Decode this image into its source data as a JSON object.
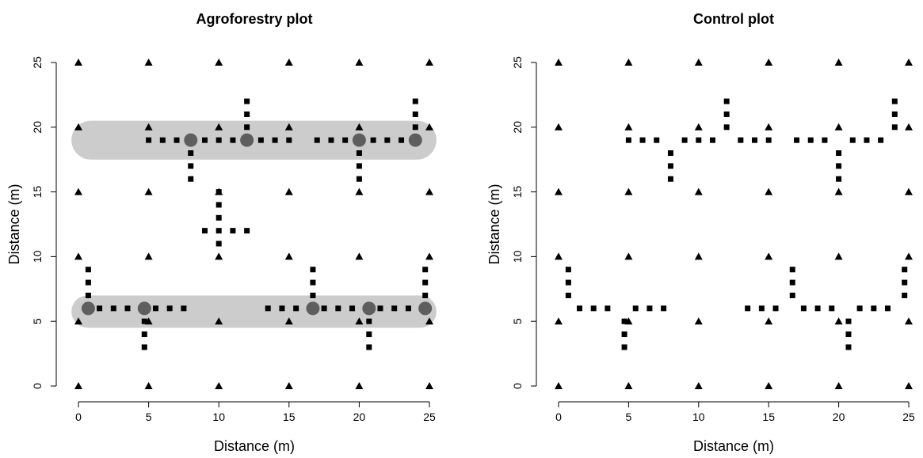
{
  "chart_data": [
    {
      "type": "scatter",
      "title": "Agroforestry plot",
      "xlabel": "Distance (m)",
      "ylabel": "Distance (m)",
      "xlim": [
        0,
        25
      ],
      "ylim": [
        0,
        25
      ],
      "xticks": [
        "0",
        "5",
        "10",
        "15",
        "20",
        "25"
      ],
      "yticks": [
        "0",
        "5",
        "10",
        "15",
        "20",
        "25"
      ],
      "grid": false,
      "bands": [
        {
          "x": [
            -0.5,
            25.5
          ],
          "y": [
            17.5,
            20.5
          ],
          "color": "#cccccc"
        },
        {
          "x": [
            -0.5,
            25.5
          ],
          "y": [
            4.5,
            7.0
          ],
          "color": "#cccccc"
        }
      ],
      "series": [
        {
          "marker": "triangle",
          "color": "#000000",
          "points": [
            [
              0,
              0
            ],
            [
              5,
              0
            ],
            [
              10,
              0
            ],
            [
              15,
              0
            ],
            [
              20,
              0
            ],
            [
              25,
              0
            ],
            [
              0,
              5
            ],
            [
              5,
              5
            ],
            [
              10,
              5
            ],
            [
              15,
              5
            ],
            [
              20,
              5
            ],
            [
              25,
              5
            ],
            [
              0,
              10
            ],
            [
              5,
              10
            ],
            [
              10,
              10
            ],
            [
              15,
              10
            ],
            [
              20,
              10
            ],
            [
              25,
              10
            ],
            [
              0,
              15
            ],
            [
              5,
              15
            ],
            [
              10,
              15
            ],
            [
              15,
              15
            ],
            [
              20,
              15
            ],
            [
              25,
              15
            ],
            [
              0,
              20
            ],
            [
              5,
              20
            ],
            [
              10,
              20
            ],
            [
              15,
              20
            ],
            [
              20,
              20
            ],
            [
              25,
              20
            ],
            [
              0,
              25
            ],
            [
              5,
              25
            ],
            [
              10,
              25
            ],
            [
              15,
              25
            ],
            [
              20,
              25
            ],
            [
              25,
              25
            ]
          ]
        },
        {
          "marker": "square",
          "color": "#000000",
          "points": [
            [
              5.0,
              19
            ],
            [
              6.0,
              19
            ],
            [
              7.0,
              19
            ],
            [
              9.0,
              19
            ],
            [
              10.0,
              19
            ],
            [
              11.0,
              19
            ],
            [
              13.0,
              19
            ],
            [
              14.0,
              19
            ],
            [
              15.0,
              19
            ],
            [
              17.0,
              19
            ],
            [
              18.0,
              19
            ],
            [
              19.0,
              19
            ],
            [
              21.0,
              19
            ],
            [
              22.0,
              19
            ],
            [
              23.0,
              19
            ],
            [
              8.0,
              18
            ],
            [
              8.0,
              17
            ],
            [
              8.0,
              16
            ],
            [
              12.0,
              20
            ],
            [
              12.0,
              21
            ],
            [
              12.0,
              22
            ],
            [
              20.0,
              18
            ],
            [
              20.0,
              17
            ],
            [
              20.0,
              16
            ],
            [
              24.0,
              20
            ],
            [
              24.0,
              21
            ],
            [
              24.0,
              22
            ],
            [
              9.0,
              12
            ],
            [
              11.0,
              12
            ],
            [
              12.0,
              12
            ],
            [
              10.0,
              11
            ],
            [
              10.0,
              12
            ],
            [
              10.0,
              13
            ],
            [
              10.0,
              14
            ],
            [
              10.0,
              15
            ],
            [
              1.5,
              6
            ],
            [
              2.5,
              6
            ],
            [
              3.5,
              6
            ],
            [
              5.5,
              6
            ],
            [
              6.5,
              6
            ],
            [
              7.5,
              6
            ],
            [
              13.5,
              6
            ],
            [
              14.5,
              6
            ],
            [
              15.5,
              6
            ],
            [
              17.5,
              6
            ],
            [
              18.5,
              6
            ],
            [
              19.5,
              6
            ],
            [
              21.5,
              6
            ],
            [
              22.5,
              6
            ],
            [
              23.5,
              6
            ],
            [
              0.7,
              7
            ],
            [
              0.7,
              8
            ],
            [
              0.7,
              9
            ],
            [
              4.7,
              5
            ],
            [
              4.7,
              4
            ],
            [
              4.7,
              3
            ],
            [
              16.7,
              7
            ],
            [
              16.7,
              8
            ],
            [
              16.7,
              9
            ],
            [
              20.7,
              5
            ],
            [
              20.7,
              4
            ],
            [
              20.7,
              3
            ],
            [
              24.7,
              7
            ],
            [
              24.7,
              8
            ],
            [
              24.7,
              9
            ]
          ]
        },
        {
          "marker": "circle",
          "color": "#5e5e5e",
          "points": [
            [
              8.0,
              19
            ],
            [
              12.0,
              19
            ],
            [
              20.0,
              19
            ],
            [
              24.0,
              19
            ],
            [
              0.7,
              6
            ],
            [
              4.7,
              6
            ],
            [
              16.7,
              6
            ],
            [
              20.7,
              6
            ],
            [
              24.7,
              6
            ]
          ]
        }
      ]
    },
    {
      "type": "scatter",
      "title": "Control plot",
      "xlabel": "Distance (m)",
      "ylabel": "Distance (m)",
      "xlim": [
        0,
        25
      ],
      "ylim": [
        0,
        25
      ],
      "xticks": [
        "0",
        "5",
        "10",
        "15",
        "20",
        "25"
      ],
      "yticks": [
        "0",
        "5",
        "10",
        "15",
        "20",
        "25"
      ],
      "grid": false,
      "bands": [],
      "series": [
        {
          "marker": "triangle",
          "color": "#000000",
          "points": [
            [
              0,
              0
            ],
            [
              5,
              0
            ],
            [
              10,
              0
            ],
            [
              15,
              0
            ],
            [
              20,
              0
            ],
            [
              25,
              0
            ],
            [
              0,
              5
            ],
            [
              5,
              5
            ],
            [
              10,
              5
            ],
            [
              15,
              5
            ],
            [
              20,
              5
            ],
            [
              25,
              5
            ],
            [
              0,
              10
            ],
            [
              5,
              10
            ],
            [
              10,
              10
            ],
            [
              15,
              10
            ],
            [
              20,
              10
            ],
            [
              25,
              10
            ],
            [
              0,
              15
            ],
            [
              5,
              15
            ],
            [
              10,
              15
            ],
            [
              15,
              15
            ],
            [
              20,
              15
            ],
            [
              25,
              15
            ],
            [
              0,
              20
            ],
            [
              5,
              20
            ],
            [
              10,
              20
            ],
            [
              15,
              20
            ],
            [
              20,
              20
            ],
            [
              25,
              20
            ],
            [
              0,
              25
            ],
            [
              5,
              25
            ],
            [
              10,
              25
            ],
            [
              15,
              25
            ],
            [
              20,
              25
            ],
            [
              25,
              25
            ]
          ]
        },
        {
          "marker": "square",
          "color": "#000000",
          "points": [
            [
              5.0,
              19
            ],
            [
              6.0,
              19
            ],
            [
              7.0,
              19
            ],
            [
              9.0,
              19
            ],
            [
              10.0,
              19
            ],
            [
              11.0,
              19
            ],
            [
              13.0,
              19
            ],
            [
              14.0,
              19
            ],
            [
              15.0,
              19
            ],
            [
              17.0,
              19
            ],
            [
              18.0,
              19
            ],
            [
              19.0,
              19
            ],
            [
              21.0,
              19
            ],
            [
              22.0,
              19
            ],
            [
              23.0,
              19
            ],
            [
              8.0,
              18
            ],
            [
              8.0,
              17
            ],
            [
              8.0,
              16
            ],
            [
              12.0,
              20
            ],
            [
              12.0,
              21
            ],
            [
              12.0,
              22
            ],
            [
              20.0,
              18
            ],
            [
              20.0,
              17
            ],
            [
              20.0,
              16
            ],
            [
              24.0,
              20
            ],
            [
              24.0,
              21
            ],
            [
              24.0,
              22
            ],
            [
              1.5,
              6
            ],
            [
              2.5,
              6
            ],
            [
              3.5,
              6
            ],
            [
              5.5,
              6
            ],
            [
              6.5,
              6
            ],
            [
              7.5,
              6
            ],
            [
              13.5,
              6
            ],
            [
              14.5,
              6
            ],
            [
              15.5,
              6
            ],
            [
              17.5,
              6
            ],
            [
              18.5,
              6
            ],
            [
              19.5,
              6
            ],
            [
              21.5,
              6
            ],
            [
              22.5,
              6
            ],
            [
              23.5,
              6
            ],
            [
              0.7,
              7
            ],
            [
              0.7,
              8
            ],
            [
              0.7,
              9
            ],
            [
              4.7,
              5
            ],
            [
              4.7,
              4
            ],
            [
              4.7,
              3
            ],
            [
              16.7,
              7
            ],
            [
              16.7,
              8
            ],
            [
              16.7,
              9
            ],
            [
              20.7,
              5
            ],
            [
              20.7,
              4
            ],
            [
              20.7,
              3
            ],
            [
              24.7,
              7
            ],
            [
              24.7,
              8
            ],
            [
              24.7,
              9
            ]
          ]
        }
      ]
    }
  ]
}
